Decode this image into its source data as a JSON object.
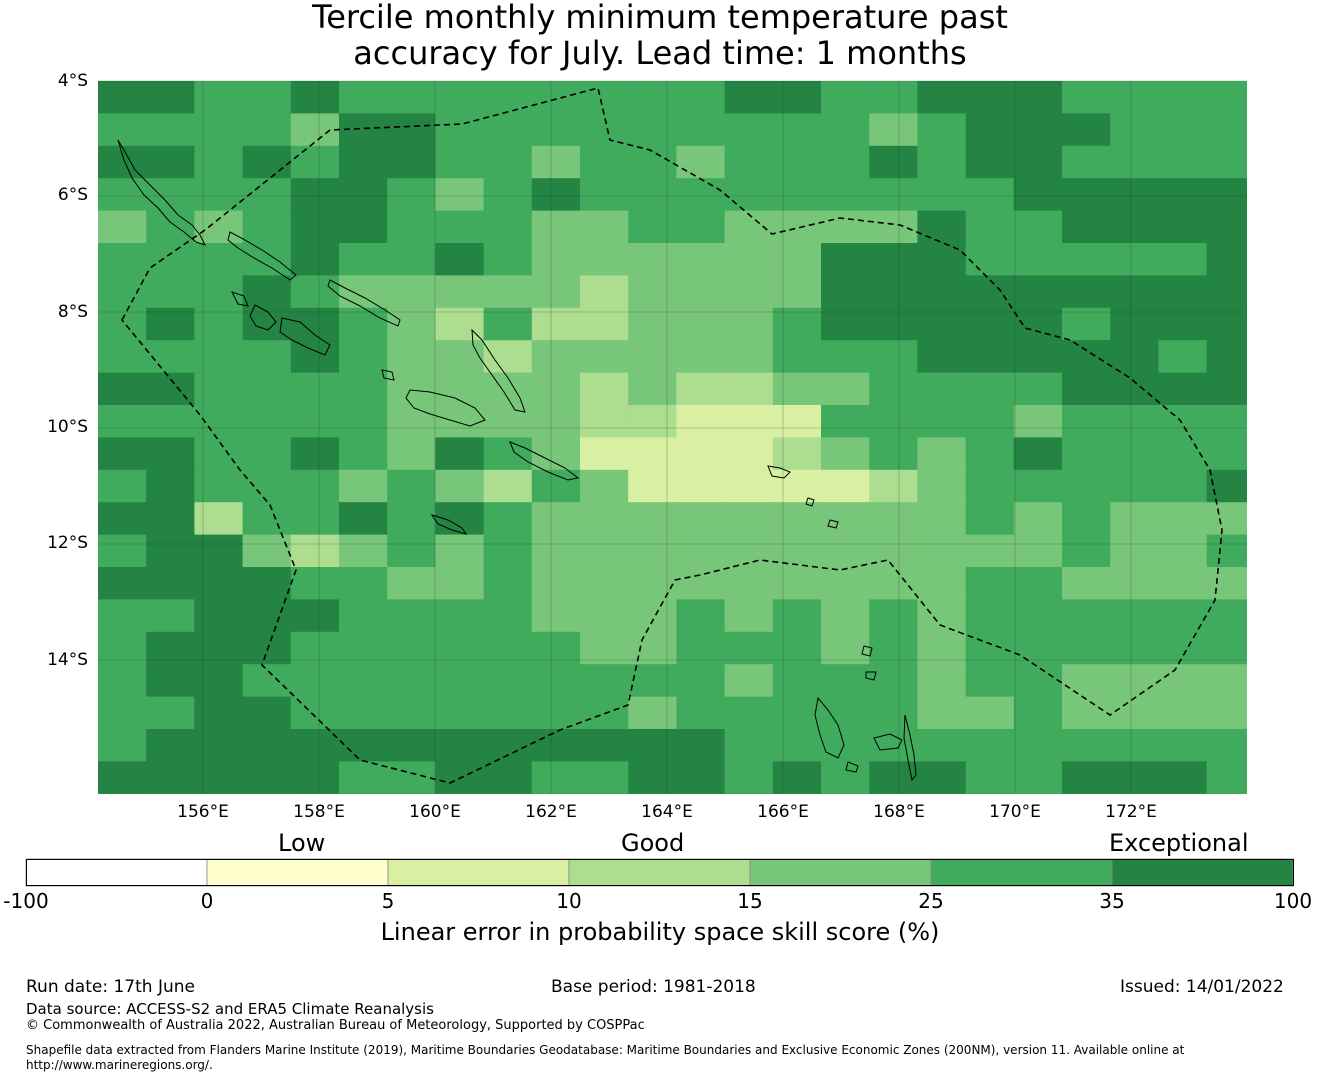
{
  "title": {
    "line1": "Tercile monthly minimum temperature past",
    "line2": "accuracy for July. Lead time: 1 months"
  },
  "map": {
    "lat_labels": [
      "4°S",
      "6°S",
      "8°S",
      "10°S",
      "12°S",
      "14°S"
    ],
    "lon_labels": [
      "156°E",
      "158°E",
      "160°E",
      "162°E",
      "164°E",
      "166°E",
      "168°E",
      "170°E",
      "172°E"
    ],
    "lon_range": [
      154.2,
      174.0
    ],
    "lat_range": [
      -16.3,
      -4.0
    ],
    "grid_cell_deg": 0.8264,
    "eez_boundary": "dashed",
    "legend_categories": [
      {
        "value": 0,
        "label": "",
        "color": "#ffffff"
      },
      {
        "value": 1,
        "label": "",
        "color": "#ffffcc"
      },
      {
        "value": 2,
        "label": "",
        "color": "#d9f0a3"
      },
      {
        "value": 3,
        "label": "",
        "color": "#addd8e"
      },
      {
        "value": 4,
        "label": "",
        "color": "#78c679"
      },
      {
        "value": 5,
        "label": "",
        "color": "#41ab5d"
      },
      {
        "value": 6,
        "label": "",
        "color": "#238443"
      }
    ],
    "skill_grid": [
      "66556555555556655666555555",
      "55554665555555554566655555",
      "66565665545545556566555555",
      "55556654565555555556666666",
      "45456655544554444655666666",
      "55556556544444466655555666",
      "55565444443444466666666666",
      "56566543533444566666566666",
      "55556544344444555666665655",
      "66555544443433445555666655",
      "55555544443322255554555554",
      "66556546542222345456555555",
      "56555454354222223455555654",
      "66355656544444444454544444",
      "56643454544444444444544555",
      "66665544544444444455444444",
      "55666555544454545455555555",
      "56665555554455545455555555",
      "56655555555554555455444444",
      "55665555555455555445444454",
      "56666666666665555555555555",
      "66666556655665656655666555",
      "56665666666666656565555554",
      "56655566665455556566665455",
      "56655666565556666666555555",
      "56666666666656666666566555"
    ]
  },
  "colorbar": {
    "category_labels": {
      "low": "Low",
      "good": "Good",
      "exceptional": "Exceptional"
    },
    "ticks": [
      "-100",
      "0",
      "5",
      "10",
      "15",
      "25",
      "35",
      "100"
    ],
    "colors": [
      "#ffffff",
      "#ffffcc",
      "#d9f0a3",
      "#addd8e",
      "#78c679",
      "#41ab5d",
      "#238443"
    ],
    "title": "Linear error in probability space skill score (%)"
  },
  "footer": {
    "run_date": "Run date: 17th June",
    "base_period": "Base period: 1981-2018",
    "issued": "Issued: 14/01/2022",
    "data_source": "Data source: ACCESS-S2 and ERA5 Climate Reanalysis",
    "copyright": "© Commonwealth of Australia 2022, Australian Bureau of Meteorology, Supported by COSPPac",
    "shapefile_line1": "Shapefile data extracted from Flanders Marine Institute (2019), Maritime Boundaries Geodatabase: Maritime Boundaries and Exclusive Economic Zones (200NM), version 11. Available online at",
    "shapefile_line2": "http://www.marineregions.org/."
  }
}
